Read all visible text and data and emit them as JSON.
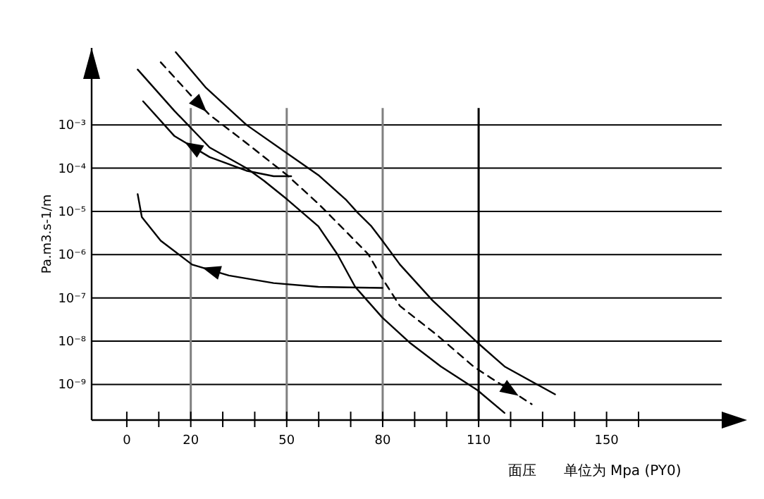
{
  "chart_data": {
    "type": "line",
    "xlabel": "面压      单位为 Mpa (PY0)",
    "ylabel": "Pa.m3.s-1/m",
    "log": "y",
    "grid": "y",
    "xlim": [
      -11,
      186
    ],
    "xticks": [
      0,
      {
        "value": 10,
        "label": null
      },
      20,
      {
        "value": 30,
        "label": null
      },
      {
        "value": 40,
        "label": null
      },
      50,
      {
        "value": 60,
        "label": null
      },
      {
        "value": 70,
        "label": null
      },
      80,
      {
        "value": 90,
        "label": null
      },
      {
        "value": 100,
        "label": null
      },
      110,
      {
        "value": 120,
        "label": null
      },
      {
        "value": 130,
        "label": null
      },
      {
        "value": 140,
        "label": null
      },
      150,
      {
        "value": 160,
        "label": null
      }
    ],
    "ylim": [
      1.5e-10,
      0.06
    ],
    "yticks": [
      {
        "value": 0.001,
        "label": "10⁻³"
      },
      {
        "value": 0.0001,
        "label": "10⁻⁴"
      },
      {
        "value": 1e-05,
        "label": "10⁻⁵"
      },
      {
        "value": 1e-06,
        "label": "10⁻⁶"
      },
      {
        "value": 1e-07,
        "label": "10⁻⁷"
      },
      {
        "value": 1e-08,
        "label": "10⁻⁸"
      },
      {
        "value": 1e-09,
        "label": "10⁻⁹"
      }
    ],
    "ref_lines": [
      {
        "axis": "x",
        "value": 20,
        "color": "#808080"
      },
      {
        "axis": "x",
        "value": 50,
        "color": "#808080"
      },
      {
        "axis": "x",
        "value": 80,
        "color": "#808080"
      },
      {
        "axis": "x",
        "value": 110,
        "color": "#000000"
      }
    ],
    "series": [
      {
        "color": "#000000",
        "line_style": "solid",
        "x": [
          15.3,
          24.6,
          37.4,
          50.1,
          59.9,
          68.4,
          72.2,
          76.5,
          79.9,
          85.4,
          95.6,
          109.6,
          118.1,
          133.9
        ],
        "values": [
          0.048,
          0.0074,
          0.001,
          0.00022,
          6.9e-05,
          1.9e-05,
          9.3e-06,
          4.5e-06,
          2.1e-06,
          5.9e-07,
          8.7e-08,
          9.3e-09,
          2.6e-09,
          5.9e-10
        ]
      },
      {
        "color": "#000000",
        "line_style": "dashed",
        "x": [
          10.6,
          20.4,
          25.9,
          37.4,
          50.1,
          59.9,
          68.4,
          75.6,
          79.9,
          85.4,
          96.9,
          108.4,
          113.9,
          126.6
        ],
        "values": [
          0.028,
          0.0045,
          0.0017,
          0.00038,
          6.9e-05,
          1.5e-05,
          3.5e-06,
          1e-06,
          2.8e-07,
          6.5e-08,
          1.4e-08,
          2.6e-09,
          1.4e-09,
          3.5e-10
        ]
      },
      {
        "color": "#000000",
        "line_style": "solid",
        "x": [
          3.4,
          14.9,
          25.9,
          37.4,
          42.9,
          50.1,
          59.9,
          65.9,
          71.4,
          79.9,
          88.4,
          98.2,
          109.6,
          118.1
        ],
        "values": [
          0.019,
          0.0021,
          0.0003,
          0.0001,
          5.1e-05,
          1.9e-05,
          4.5e-06,
          1e-06,
          1.8e-07,
          3.5e-08,
          9.3e-09,
          2.6e-09,
          7.4e-10,
          2.2e-10
        ]
      },
      {
        "color": "#000000",
        "line_style": "solid",
        "x": [
          51.4,
          45.9,
          37.4,
          25.9,
          14.9,
          5.1
        ],
        "values": [
          6.5e-05,
          6.5e-05,
          8.7e-05,
          0.00018,
          0.00055,
          0.0035
        ]
      },
      {
        "color": "#000000",
        "line_style": "solid",
        "x": [
          79.9,
          59.9,
          45.9,
          31.9,
          20.4,
          10.6,
          4.7,
          3.4
        ],
        "values": [
          1.7e-07,
          1.8e-07,
          2.2e-07,
          3.3e-07,
          5.9e-07,
          2.1e-06,
          7.4e-06,
          2.5e-05
        ]
      }
    ]
  }
}
